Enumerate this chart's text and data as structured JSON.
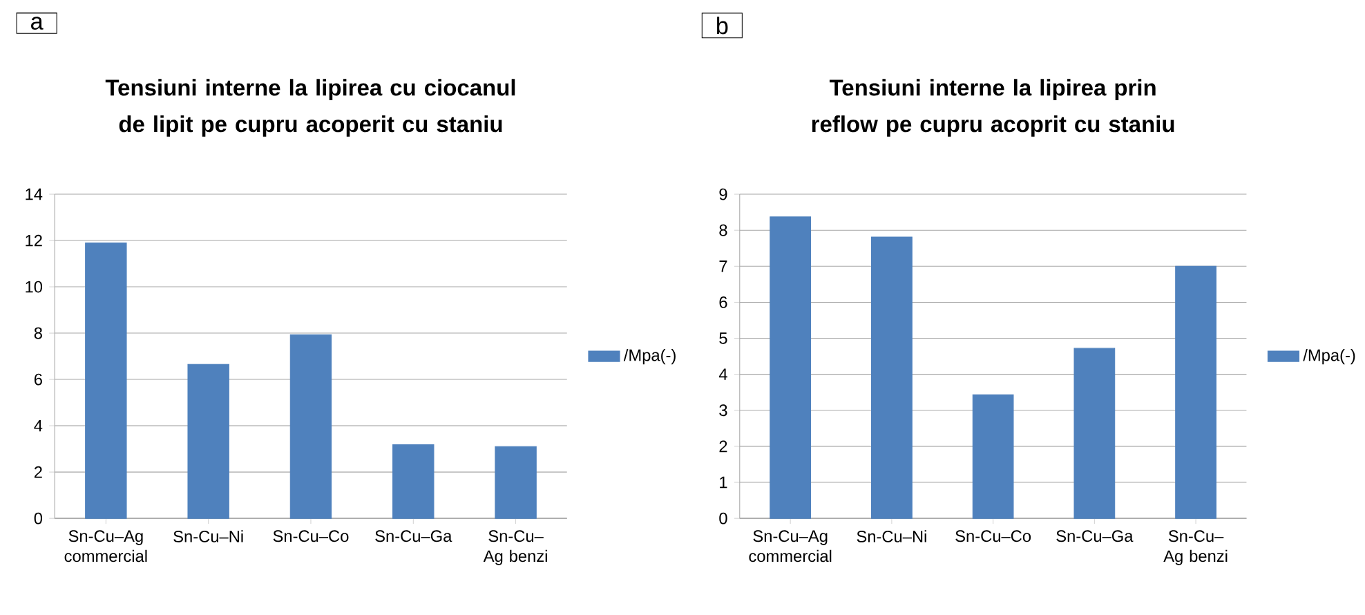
{
  "chart_data": [
    {
      "type": "bar",
      "title": "Tensiuni interne la lipirea cu ciocanul de lipit pe cupru acoperit cu staniu",
      "categories": [
        "Sn-Cu–Ag commercial",
        "Sn-Cu–Ni",
        "Sn-Cu–Co",
        "Sn-Cu–Ga",
        "Sn-Cu–Ag benzi"
      ],
      "series": [
        {
          "name": "/Mpa(-)",
          "color": "#4f81bd",
          "values": [
            11.9,
            6.65,
            7.93,
            3.18,
            3.1
          ]
        }
      ],
      "ylim": [
        0,
        14
      ],
      "yticks": [
        0,
        2,
        4,
        6,
        8,
        10,
        12,
        14
      ],
      "grid": "y",
      "legend": "right",
      "annotations": [
        "a"
      ]
    },
    {
      "type": "bar",
      "title": "Tensiuni interne la lipirea prin reflow pe cupru acoprit cu staniu",
      "categories": [
        "Sn-Cu–Ag commercial",
        "Sn-Cu–Ni",
        "Sn-Cu–Co",
        "Sn-Cu–Ga",
        "Sn-Cu–Ag benzi"
      ],
      "series": [
        {
          "name": "/Mpa(-)",
          "color": "#4f81bd",
          "values": [
            8.37,
            7.81,
            3.43,
            4.72,
            7.0
          ]
        }
      ],
      "ylim": [
        0,
        9
      ],
      "yticks": [
        0,
        1,
        2,
        3,
        4,
        5,
        6,
        7,
        8,
        9
      ],
      "grid": "y",
      "legend": "right",
      "annotations": [
        "b"
      ]
    }
  ]
}
